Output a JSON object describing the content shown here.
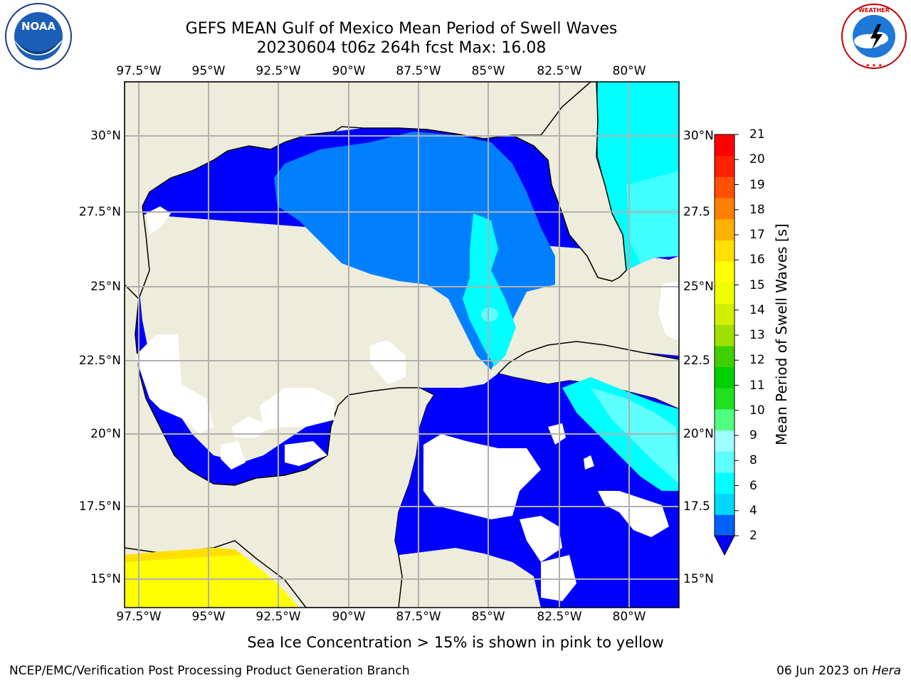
{
  "header": {
    "title_line1": "GEFS MEAN Gulf of Mexico Mean Period of Swell Waves",
    "title_line2": "20230604 t06z 264h fcst   Max: 16.08"
  },
  "logos": {
    "noaa": {
      "text": "NOAA",
      "ring_text": "NATIONAL OCEANIC AND ATMOSPHERIC ADMINISTRATION · U.S. DEPARTMENT OF COMMERCE"
    },
    "nws": {
      "ring_text": "NATIONAL WEATHER SERVICE"
    }
  },
  "map": {
    "lon_labels": [
      "97.5°W",
      "95°W",
      "92.5°W",
      "90°W",
      "87.5°W",
      "85°W",
      "82.5°W",
      "80°W"
    ],
    "lat_labels": [
      "30°N",
      "27.5°N",
      "25°N",
      "22.5°N",
      "20°N",
      "17.5°N",
      "15°N"
    ],
    "lat_labels_right": [
      "30°N",
      "27.5",
      "25°N",
      "22.5",
      "20°N",
      "17.5",
      "15°N"
    ],
    "extent": {
      "lon_min": -98.0,
      "lon_max": -78.2,
      "lat_min": 14.0,
      "lat_max": 31.8
    },
    "gridlines": true,
    "colors": {
      "land": "#eeecdb",
      "ocean_low": "#0000ff",
      "ocean_2_4": "#0080ff",
      "ocean_4_6": "#00ffff",
      "ocean_6_8": "#40ffff",
      "ice_yellow": "#ffff00",
      "grid": "#b0b0b0"
    }
  },
  "colorbar": {
    "label": "Mean Period of Swell Waves [s]",
    "ticks": [
      "21",
      "20",
      "19",
      "18",
      "17",
      "16",
      "15",
      "14",
      "13",
      "12",
      "11",
      "10",
      "9",
      "8",
      "6",
      "4",
      "2"
    ],
    "colors_bottom_to_top": [
      "#0060ff",
      "#00d8ff",
      "#00ffff",
      "#60ffff",
      "#a0ffff",
      "#50ff80",
      "#20e020",
      "#00d000",
      "#40d000",
      "#a0e000",
      "#d0f000",
      "#f0ff00",
      "#ffff00",
      "#ffe000",
      "#ffb000",
      "#ff8000",
      "#ff5000",
      "#ff2000",
      "#ff0000"
    ],
    "extend": "min-triangle-blue"
  },
  "note": "Sea Ice Concentration > 15% is shown in pink to yellow",
  "footer": {
    "left": "NCEP/EMC/Verification Post Processing Product Generation Branch",
    "right_date": "06 Jun 2023 on ",
    "right_host": "Hera"
  }
}
